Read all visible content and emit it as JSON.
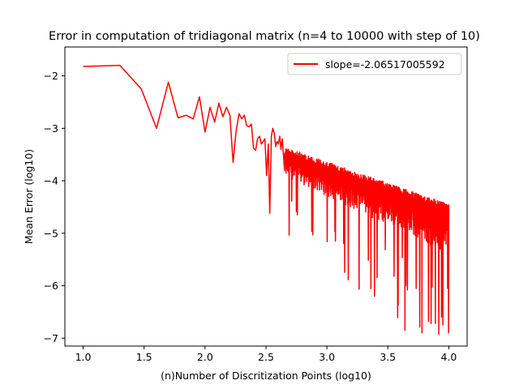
{
  "chart_data": {
    "type": "line",
    "title": "Error in  computation of tridiagonal matrix (n=4 to 10000 with step of 10)",
    "xlabel": "(n)Number of Discritization Points (log10)",
    "ylabel": "Mean Error (log10)",
    "xlim": [
      0.85,
      4.15
    ],
    "ylim": [
      -7.15,
      -1.45
    ],
    "xticks": [
      1.0,
      1.5,
      2.0,
      2.5,
      3.0,
      3.5,
      4.0
    ],
    "xtick_labels": [
      "1.0",
      "1.5",
      "2.0",
      "2.5",
      "3.0",
      "3.5",
      "4.0"
    ],
    "yticks": [
      -2,
      -3,
      -4,
      -5,
      -6,
      -7
    ],
    "ytick_labels": [
      "−2",
      "−3",
      "−4",
      "−5",
      "−6",
      "−7"
    ],
    "grid": false,
    "legend_position": "upper right",
    "series": [
      {
        "name": "slope=-2.06517005592",
        "color": "#ff0000",
        "noisy_tail": {
          "x_start": 2.65,
          "x_end": 4.0,
          "upper_start": -3.35,
          "upper_end": -4.45,
          "lower_start": -3.9,
          "lower_end": -5.4
        },
        "x": [
          1.0,
          1.301,
          1.477,
          1.602,
          1.699,
          1.778,
          1.845,
          1.903,
          1.954,
          2.0,
          2.041,
          2.079,
          2.114,
          2.146,
          2.176,
          2.204,
          2.23,
          2.255,
          2.279,
          2.301,
          2.322,
          2.342,
          2.362,
          2.38,
          2.398,
          2.415,
          2.431,
          2.447,
          2.462,
          2.477,
          2.491,
          2.505,
          2.519,
          2.531,
          2.544,
          2.556,
          2.568,
          2.58,
          2.591,
          2.602,
          2.613,
          2.623,
          2.633,
          2.643
        ],
        "y": [
          -1.82,
          -1.8,
          -2.25,
          -3.0,
          -2.12,
          -2.8,
          -2.75,
          -2.82,
          -2.4,
          -3.07,
          -2.6,
          -2.88,
          -2.52,
          -2.78,
          -2.6,
          -2.75,
          -3.65,
          -3.05,
          -2.72,
          -2.82,
          -2.75,
          -2.95,
          -2.97,
          -2.92,
          -3.38,
          -3.42,
          -3.2,
          -3.15,
          -3.3,
          -3.25,
          -3.2,
          -3.9,
          -3.3,
          -4.62,
          -3.15,
          -3.0,
          -3.1,
          -3.35,
          -3.25,
          -3.3,
          -3.15,
          -3.4,
          -3.2,
          -3.5
        ]
      }
    ]
  }
}
